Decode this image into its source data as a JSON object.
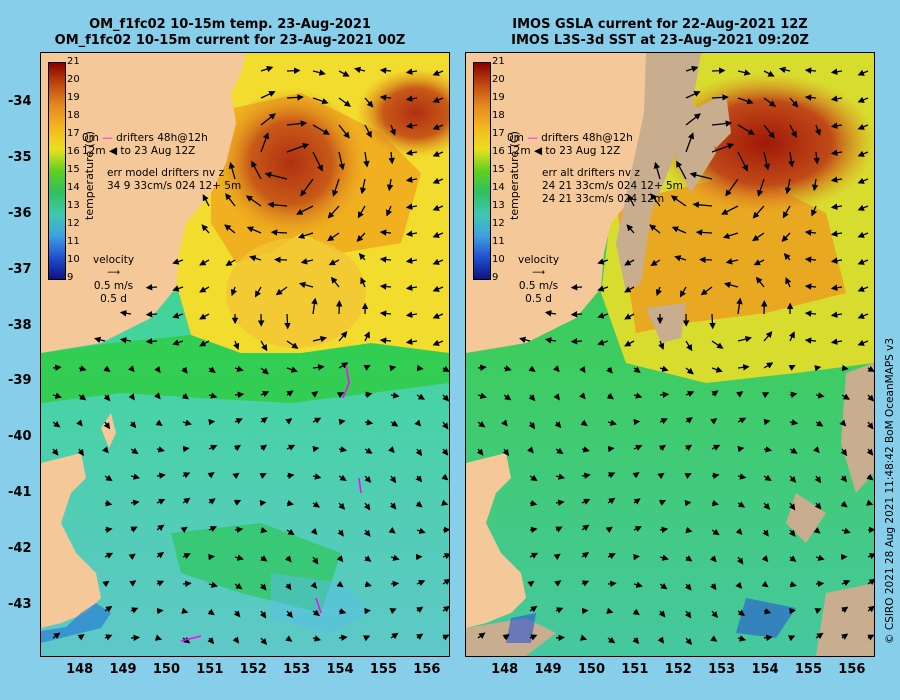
{
  "left_panel": {
    "title_line1": "OM_f1fc02 10-15m temp. 23-Aug-2021",
    "title_line2": "OM_f1fc02 10-15m current for 23-Aug-2021 00Z",
    "legend_drifters_48h": "drifters 48h@12h",
    "legend_drifters_to": "to 23 Aug 12Z",
    "legend_prefix_0m": "0m",
    "legend_prefix_12m": "12m",
    "err_line1": "err model drifters nv z",
    "err_line2": "34 9 33cm/s 024 12+ 5m",
    "velocity_label": "velocity",
    "velocity_speed": "0.5 m/s",
    "velocity_days": "0.5 d",
    "colorbar_title": "temperature (C)"
  },
  "right_panel": {
    "title_line1": "IMOS GSLA current for 22-Aug-2021 12Z",
    "title_line2": "IMOS L3S-3d SST at 23-Aug-2021 09:20Z",
    "legend_drifters_48h": "drifters 48h@12h",
    "legend_drifters_to": "to 23 Aug 12Z",
    "legend_prefix_0m": "0m",
    "legend_prefix_12m": "12m",
    "err_line1": "err alt drifters nv z",
    "err_line2": "24 21 33cm/s 024 12+ 5m",
    "err_line3": "24 21 33cm/s 024 12m",
    "velocity_label": "velocity",
    "velocity_speed": "0.5 m/s",
    "velocity_days": "0.5 d",
    "colorbar_title": "temperature (C)"
  },
  "map": {
    "lat_ticks": [
      "-34",
      "-35",
      "-36",
      "-37",
      "-38",
      "-39",
      "-40",
      "-41",
      "-42",
      "-43"
    ],
    "lon_ticks": [
      "148",
      "149",
      "150",
      "151",
      "152",
      "153",
      "154",
      "155",
      "156"
    ],
    "lat_range": [
      -43.9,
      -33.1
    ],
    "lon_range": [
      147.1,
      156.5
    ],
    "colorbar_ticks": [
      "21",
      "20",
      "19",
      "18",
      "17",
      "16",
      "15",
      "14",
      "13",
      "12",
      "11",
      "10",
      "9"
    ],
    "colorbar_range": [
      9,
      21
    ],
    "colors": {
      "background": "#87ceeb",
      "land": "#f5c89a",
      "cloud": "#c8ad8f",
      "drifter": "#ff00ff"
    }
  },
  "credit": "© CSIRO 2021   28 Aug 2021 11:48:42 BoM OceanMAPS v3"
}
